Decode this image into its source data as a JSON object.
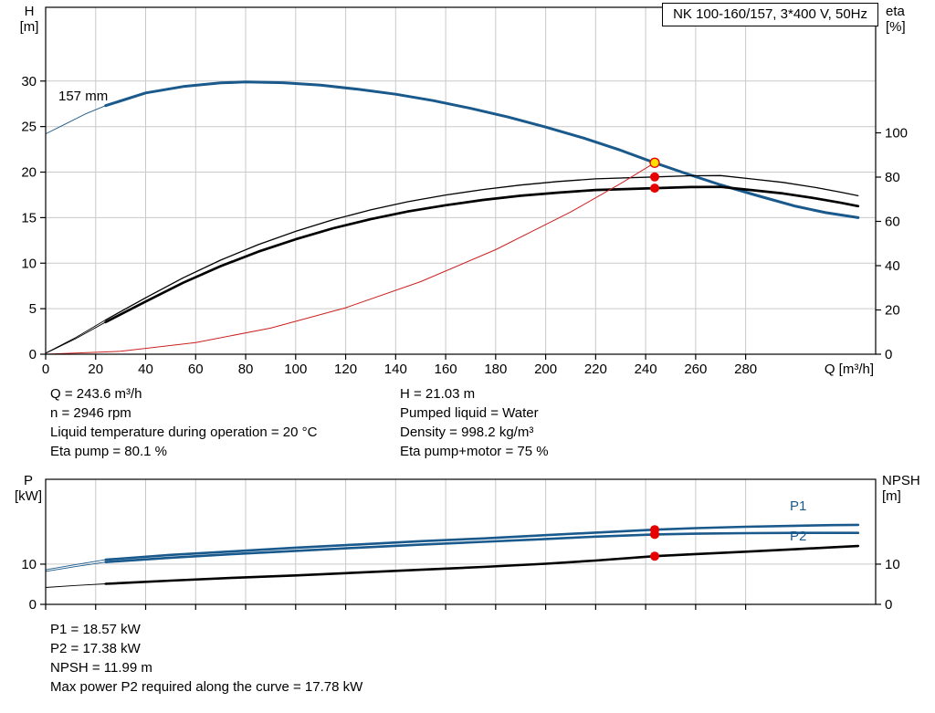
{
  "colors": {
    "curve_blue": "#19598c",
    "curve_black": "#000000",
    "curve_red": "#cc2020",
    "marker_red": "#e60000",
    "marker_yellow": "#ffdf00",
    "grid": "#c9c9c9",
    "axis": "#000000"
  },
  "details_top": {
    "left": [
      "Q = 243.6 m³/h",
      "n = 2946 rpm",
      "Liquid temperature during operation = 20 °C",
      "Eta pump = 80.1 %"
    ],
    "right": [
      "H = 21.03 m",
      "Pumped liquid = Water",
      "Density = 998.2 kg/m³",
      "Eta pump+motor = 75 %"
    ]
  },
  "details_bottom": [
    "P1 = 18.57 kW",
    "P2 = 17.38 kW",
    "NPSH = 11.99 m",
    "Max power P2 required along the curve = 17.78 kW"
  ],
  "chart_data": [
    {
      "type": "line",
      "name": "qh-eta-chart",
      "title": "NK 100-160/157, 3*400 V, 50Hz",
      "impeller_label": "157 mm",
      "x": {
        "label": "Q [m³/h]",
        "min": 0,
        "max": 332,
        "ticks": [
          0,
          20,
          40,
          60,
          80,
          100,
          120,
          140,
          160,
          180,
          200,
          220,
          240,
          260,
          280
        ],
        "show_tick_labels": true
      },
      "left": {
        "caption": [
          "H",
          "[m]"
        ],
        "min": 0,
        "max": 38.1,
        "ticks": [
          0,
          5,
          10,
          15,
          20,
          25,
          30
        ]
      },
      "right": {
        "caption": [
          "eta",
          "[%]"
        ],
        "min": 0,
        "max": 156.7,
        "ticks": [
          0,
          20,
          40,
          60,
          80,
          100
        ]
      },
      "grid": true,
      "series": [
        {
          "name": "head-curve-lead",
          "axis": "left",
          "color": "#19598c",
          "width": 0.9,
          "points": [
            [
              0,
              24.2
            ],
            [
              8,
              25.3
            ],
            [
              16,
              26.4
            ],
            [
              24,
              27.3
            ]
          ]
        },
        {
          "name": "head-curve-157mm",
          "axis": "left",
          "color": "#19598c",
          "width": 3,
          "points": [
            [
              24,
              27.3
            ],
            [
              40,
              28.7
            ],
            [
              55,
              29.4
            ],
            [
              70,
              29.8
            ],
            [
              80,
              29.9
            ],
            [
              95,
              29.82
            ],
            [
              110,
              29.55
            ],
            [
              125,
              29.1
            ],
            [
              140,
              28.55
            ],
            [
              155,
              27.85
            ],
            [
              170,
              27.0
            ],
            [
              185,
              26.05
            ],
            [
              200,
              24.95
            ],
            [
              215,
              23.75
            ],
            [
              230,
              22.4
            ],
            [
              243.6,
              21.03
            ],
            [
              255,
              19.95
            ],
            [
              270,
              18.6
            ],
            [
              285,
              17.4
            ],
            [
              300,
              16.25
            ],
            [
              312,
              15.55
            ],
            [
              325,
              15.0
            ]
          ]
        },
        {
          "name": "eta-pump-lead",
          "axis": "right",
          "color": "#000000",
          "width": 0.9,
          "points": [
            [
              0,
              0.5
            ],
            [
              12,
              7.5
            ],
            [
              24,
              15.5
            ]
          ]
        },
        {
          "name": "eta-pump-curve",
          "axis": "right",
          "color": "#000000",
          "width": 1.3,
          "points": [
            [
              24,
              15.5
            ],
            [
              40,
              25.5
            ],
            [
              55,
              34.5
            ],
            [
              70,
              42.5
            ],
            [
              85,
              49.5
            ],
            [
              100,
              55.5
            ],
            [
              115,
              60.8
            ],
            [
              130,
              65.2
            ],
            [
              145,
              68.9
            ],
            [
              160,
              71.9
            ],
            [
              175,
              74.4
            ],
            [
              190,
              76.4
            ],
            [
              205,
              78.0
            ],
            [
              220,
              79.2
            ],
            [
              243.6,
              80.1
            ],
            [
              258,
              80.6
            ],
            [
              270,
              80.7
            ],
            [
              282,
              79.2
            ],
            [
              295,
              77.6
            ],
            [
              308,
              75.3
            ],
            [
              318,
              73.2
            ],
            [
              325,
              71.6
            ]
          ]
        },
        {
          "name": "eta-pump-motor-lead",
          "axis": "right",
          "color": "#000000",
          "width": 0.9,
          "points": [
            [
              0,
              0.4
            ],
            [
              12,
              7.0
            ],
            [
              24,
              14.5
            ]
          ]
        },
        {
          "name": "eta-pump-motor-curve",
          "axis": "right",
          "color": "#000000",
          "width": 2.7,
          "points": [
            [
              24,
              14.5
            ],
            [
              40,
              23.8
            ],
            [
              55,
              32.3
            ],
            [
              70,
              39.8
            ],
            [
              85,
              46.3
            ],
            [
              100,
              51.9
            ],
            [
              115,
              56.9
            ],
            [
              130,
              61.0
            ],
            [
              145,
              64.5
            ],
            [
              160,
              67.3
            ],
            [
              175,
              69.7
            ],
            [
              190,
              71.6
            ],
            [
              205,
              73.0
            ],
            [
              220,
              74.2
            ],
            [
              243.6,
              75.0
            ],
            [
              258,
              75.5
            ],
            [
              270,
              75.6
            ],
            [
              282,
              74.2
            ],
            [
              295,
              72.6
            ],
            [
              308,
              70.4
            ],
            [
              318,
              68.4
            ],
            [
              325,
              66.9
            ]
          ]
        },
        {
          "name": "system-resistance-curve",
          "axis": "left",
          "color": "#cc2020",
          "width": 1,
          "points": [
            [
              0,
              0
            ],
            [
              30,
              0.32
            ],
            [
              60,
              1.28
            ],
            [
              90,
              2.87
            ],
            [
              120,
              5.1
            ],
            [
              150,
              7.97
            ],
            [
              180,
              11.48
            ],
            [
              210,
              15.62
            ],
            [
              230,
              18.74
            ],
            [
              243.6,
              21.03
            ]
          ]
        }
      ],
      "markers": [
        {
          "name": "duty-point",
          "axis": "left",
          "q": 243.6,
          "value": 21.03,
          "color": "#ffdf00",
          "stroke": "#e60000"
        },
        {
          "name": "eta-pump-point",
          "axis": "right",
          "q": 243.6,
          "value": 80.1,
          "color": "#e60000"
        },
        {
          "name": "eta-pump-motor-point",
          "axis": "right",
          "q": 243.6,
          "value": 75,
          "color": "#e60000"
        }
      ]
    },
    {
      "type": "line",
      "name": "power-npsh-chart",
      "curve_labels": {
        "p1": "P1",
        "p2": "P2"
      },
      "x": {
        "label": "",
        "min": 0,
        "max": 332,
        "ticks": [
          0,
          20,
          40,
          60,
          80,
          100,
          120,
          140,
          160,
          180,
          200,
          220,
          240,
          260,
          280
        ],
        "show_tick_labels": false
      },
      "left": {
        "caption": [
          "P",
          "[kW]"
        ],
        "min": 0,
        "max": 31.1,
        "ticks": [
          0,
          10
        ]
      },
      "right": {
        "caption": [
          "NPSH",
          "[m]"
        ],
        "min": 0,
        "max": 31.1,
        "ticks": [
          0,
          10
        ]
      },
      "grid": true,
      "series": [
        {
          "name": "p1-curve-lead",
          "axis": "left",
          "color": "#19598c",
          "width": 0.9,
          "points": [
            [
              0,
              8.6
            ],
            [
              12,
              9.9
            ],
            [
              24,
              11.1
            ]
          ]
        },
        {
          "name": "p1-curve",
          "axis": "left",
          "color": "#19598c",
          "width": 2.6,
          "points": [
            [
              24,
              11.1
            ],
            [
              50,
              12.3
            ],
            [
              75,
              13.2
            ],
            [
              100,
              14.1
            ],
            [
              125,
              14.9
            ],
            [
              150,
              15.7
            ],
            [
              175,
              16.4
            ],
            [
              200,
              17.2
            ],
            [
              220,
              17.85
            ],
            [
              243.6,
              18.57
            ],
            [
              260,
              18.95
            ],
            [
              280,
              19.3
            ],
            [
              300,
              19.55
            ],
            [
              315,
              19.7
            ],
            [
              325,
              19.78
            ]
          ]
        },
        {
          "name": "p2-curve-lead",
          "axis": "left",
          "color": "#19598c",
          "width": 0.9,
          "points": [
            [
              0,
              8.2
            ],
            [
              12,
              9.4
            ],
            [
              24,
              10.5
            ]
          ]
        },
        {
          "name": "p2-curve",
          "axis": "left",
          "color": "#19598c",
          "width": 2.6,
          "points": [
            [
              24,
              10.5
            ],
            [
              50,
              11.6
            ],
            [
              75,
              12.5
            ],
            [
              100,
              13.3
            ],
            [
              125,
              14.1
            ],
            [
              150,
              14.85
            ],
            [
              175,
              15.55
            ],
            [
              200,
              16.25
            ],
            [
              220,
              16.85
            ],
            [
              243.6,
              17.38
            ],
            [
              260,
              17.56
            ],
            [
              280,
              17.7
            ],
            [
              300,
              17.77
            ],
            [
              315,
              17.78
            ],
            [
              325,
              17.78
            ]
          ]
        },
        {
          "name": "npsh-curve-lead",
          "axis": "right",
          "color": "#000000",
          "width": 0.9,
          "points": [
            [
              0,
              4.2
            ],
            [
              12,
              4.7
            ],
            [
              24,
              5.1
            ]
          ]
        },
        {
          "name": "npsh-curve",
          "axis": "right",
          "color": "#000000",
          "width": 2.6,
          "points": [
            [
              24,
              5.1
            ],
            [
              50,
              5.9
            ],
            [
              75,
              6.6
            ],
            [
              100,
              7.2
            ],
            [
              125,
              7.9
            ],
            [
              150,
              8.6
            ],
            [
              175,
              9.3
            ],
            [
              200,
              10.1
            ],
            [
              220,
              10.9
            ],
            [
              243.6,
              11.99
            ],
            [
              260,
              12.5
            ],
            [
              280,
              13.1
            ],
            [
              300,
              13.7
            ],
            [
              315,
              14.2
            ],
            [
              325,
              14.5
            ]
          ]
        }
      ],
      "markers": [
        {
          "name": "p1-point",
          "axis": "left",
          "q": 243.6,
          "value": 18.57,
          "color": "#e60000"
        },
        {
          "name": "p2-point",
          "axis": "left",
          "q": 243.6,
          "value": 17.38,
          "color": "#e60000"
        },
        {
          "name": "npsh-point",
          "axis": "right",
          "q": 243.6,
          "value": 11.99,
          "color": "#e60000"
        }
      ]
    }
  ]
}
